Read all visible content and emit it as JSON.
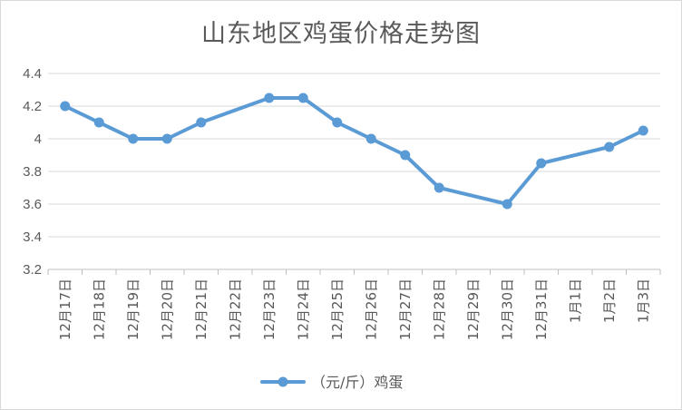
{
  "chart_data": {
    "type": "line",
    "title": "山东地区鸡蛋价格走势图",
    "categories": [
      "12月17日",
      "12月18日",
      "12月19日",
      "12月20日",
      "12月21日",
      "12月22日",
      "12月23日",
      "12月24日",
      "12月25日",
      "12月26日",
      "12月27日",
      "12月28日",
      "12月29日",
      "12月30日",
      "12月31日",
      "1月1日",
      "1月2日",
      "1月3日"
    ],
    "series": [
      {
        "name": "（元/斤）鸡蛋",
        "color": "#5b9bd5",
        "values": [
          4.2,
          4.1,
          4.0,
          4.0,
          4.1,
          null,
          4.25,
          4.25,
          4.1,
          4.0,
          3.9,
          3.7,
          null,
          3.6,
          3.85,
          null,
          3.95,
          4.05
        ]
      }
    ],
    "yticks": [
      "3.2",
      "3.4",
      "3.6",
      "3.8",
      "4",
      "4.2",
      "4.4"
    ],
    "ylim": [
      3.2,
      4.4
    ],
    "grid": true,
    "legend_position": "bottom"
  }
}
